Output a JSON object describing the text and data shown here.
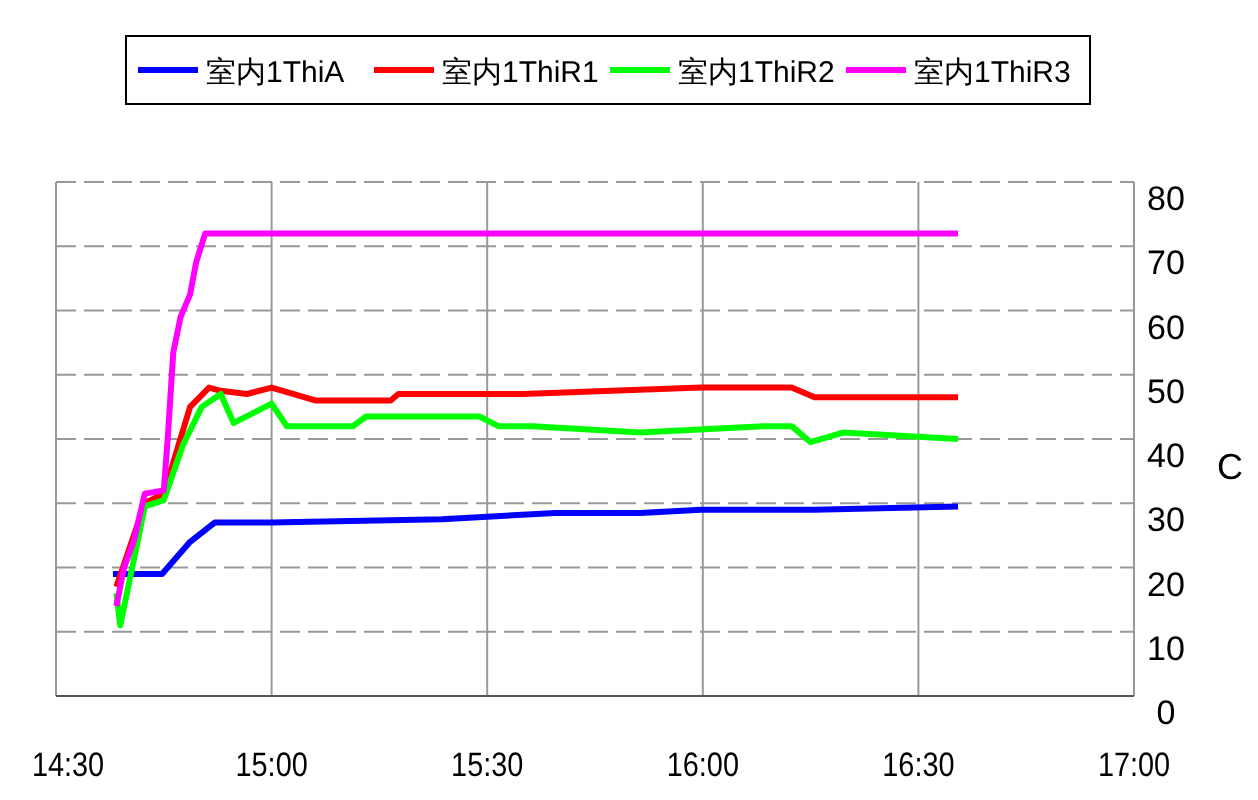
{
  "chart_data": {
    "type": "line",
    "ylabel": "C",
    "xlim": [
      14.5,
      17
    ],
    "ylim": [
      0,
      80
    ],
    "xticks": [
      {
        "value": 14.5,
        "label": "14:30"
      },
      {
        "value": 15,
        "label": "15:00"
      },
      {
        "value": 15.5,
        "label": "15:30"
      },
      {
        "value": 16,
        "label": "16:00"
      },
      {
        "value": 16.5,
        "label": "16:30"
      },
      {
        "value": 17,
        "label": "17:00"
      }
    ],
    "yticks": [
      0,
      10,
      20,
      30,
      40,
      50,
      60,
      70,
      80
    ],
    "grid": true,
    "legend": "top",
    "line_style": "solid",
    "marker": "none",
    "series": [
      {
        "name": "室内1ThiA",
        "color": "#0000ff",
        "x": [
          14.632,
          14.746,
          14.811,
          14.868,
          15.0,
          15.395,
          15.658,
          15.855,
          15.996,
          16.14,
          16.259,
          16.592
        ],
        "values": [
          19,
          19,
          24,
          27,
          27,
          27.5,
          28.5,
          28.5,
          29,
          29,
          29,
          29.5
        ]
      },
      {
        "name": "室内1ThiR1",
        "color": "#ff0000",
        "x": [
          14.64,
          14.706,
          14.75,
          14.811,
          14.855,
          14.882,
          14.943,
          15.0,
          15.101,
          15.276,
          15.294,
          15.583,
          15.996,
          16.14,
          16.206,
          16.259,
          16.592
        ],
        "values": [
          17,
          30,
          31.5,
          45,
          48,
          47.5,
          47,
          48,
          46,
          46,
          47,
          47,
          48,
          48,
          48,
          46.5,
          46.5
        ]
      },
      {
        "name": "室内1ThiR2",
        "color": "#00ff00",
        "x": [
          14.64,
          14.649,
          14.706,
          14.75,
          14.794,
          14.838,
          14.882,
          14.912,
          14.956,
          15.0,
          15.035,
          15.189,
          15.219,
          15.482,
          15.526,
          15.605,
          15.855,
          16.14,
          16.206,
          16.25,
          16.325,
          16.592
        ],
        "values": [
          16,
          11,
          29.5,
          30.5,
          39,
          45,
          47,
          42.5,
          44,
          45.5,
          42,
          42,
          43.5,
          43.5,
          42,
          42,
          41,
          42,
          42,
          39.5,
          41,
          40
        ]
      },
      {
        "name": "室内1ThiR3",
        "color": "#ff00ff",
        "x": [
          14.64,
          14.658,
          14.68,
          14.706,
          14.75,
          14.759,
          14.772,
          14.789,
          14.811,
          14.825,
          14.846,
          16.592
        ],
        "values": [
          14,
          20,
          24,
          31.5,
          32,
          40,
          53.5,
          59,
          62.5,
          67.5,
          72,
          72
        ]
      }
    ]
  }
}
